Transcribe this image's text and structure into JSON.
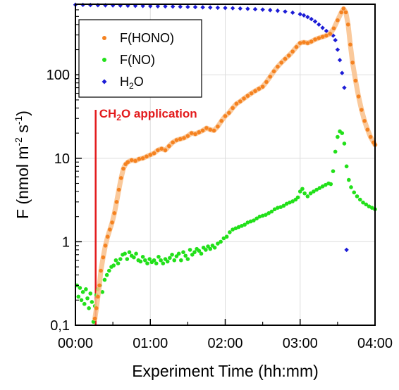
{
  "chart_data": {
    "type": "scatter",
    "title": "",
    "xlabel": "Experiment Time (hh:mm)",
    "ylabel_prefix": "F (nmol m",
    "ylabel_sup1": "-2",
    "ylabel_mid": " s",
    "ylabel_sup2": "-1",
    "ylabel_suffix": ")",
    "xlim_hours": [
      0,
      4
    ],
    "ylim": [
      0.1,
      700
    ],
    "yscale": "log",
    "grid": true,
    "legend_position": "top-left",
    "x_ticks": [
      {
        "value": 0,
        "label": "00:00"
      },
      {
        "value": 1,
        "label": "01:00"
      },
      {
        "value": 2,
        "label": "02:00"
      },
      {
        "value": 3,
        "label": "03:00"
      },
      {
        "value": 4,
        "label": "04:00"
      }
    ],
    "y_ticks": [
      {
        "value": 0.1,
        "label": "0,1"
      },
      {
        "value": 1,
        "label": "1"
      },
      {
        "value": 10,
        "label": "10"
      },
      {
        "value": 100,
        "label": "100"
      }
    ],
    "annotation": {
      "x": 0.27,
      "y_from": 0.1,
      "y_to": 38,
      "label_prefix": "CH",
      "label_sub": "2",
      "label_suffix": "O application",
      "color": "#e31a1c"
    },
    "series": [
      {
        "name": "F(HONO)",
        "name_sub": "",
        "color": "#f58220",
        "band_color": "#f9c08a",
        "marker": "circle",
        "points": [
          [
            0.26,
            0.12
          ],
          [
            0.28,
            0.16
          ],
          [
            0.3,
            0.22
          ],
          [
            0.32,
            0.3
          ],
          [
            0.34,
            0.45
          ],
          [
            0.37,
            0.65
          ],
          [
            0.4,
            0.9
          ],
          [
            0.43,
            1.15
          ],
          [
            0.46,
            1.4
          ],
          [
            0.49,
            1.7
          ],
          [
            0.52,
            2.2
          ],
          [
            0.55,
            3.0
          ],
          [
            0.58,
            4.2
          ],
          [
            0.61,
            5.8
          ],
          [
            0.64,
            7.5
          ],
          [
            0.67,
            8.5
          ],
          [
            0.7,
            9.0
          ],
          [
            0.75,
            9.5
          ],
          [
            0.8,
            9.3
          ],
          [
            0.85,
            9.8
          ],
          [
            0.9,
            10.0
          ],
          [
            0.95,
            10.5
          ],
          [
            1.0,
            11.0
          ],
          [
            1.05,
            11.5
          ],
          [
            1.1,
            12.5
          ],
          [
            1.15,
            13.0
          ],
          [
            1.2,
            12.5
          ],
          [
            1.25,
            14.0
          ],
          [
            1.3,
            15.5
          ],
          [
            1.35,
            16.5
          ],
          [
            1.4,
            17.0
          ],
          [
            1.45,
            17.5
          ],
          [
            1.5,
            18.5
          ],
          [
            1.55,
            20.0
          ],
          [
            1.6,
            19.5
          ],
          [
            1.65,
            20.5
          ],
          [
            1.7,
            21.5
          ],
          [
            1.75,
            23.0
          ],
          [
            1.8,
            22.0
          ],
          [
            1.85,
            21.5
          ],
          [
            1.9,
            24.0
          ],
          [
            1.95,
            28.0
          ],
          [
            2.0,
            32.0
          ],
          [
            2.05,
            35.0
          ],
          [
            2.1,
            40.0
          ],
          [
            2.15,
            45.0
          ],
          [
            2.2,
            48.0
          ],
          [
            2.25,
            52.0
          ],
          [
            2.3,
            56.0
          ],
          [
            2.35,
            60.0
          ],
          [
            2.4,
            64.0
          ],
          [
            2.45,
            68.0
          ],
          [
            2.5,
            72.0
          ],
          [
            2.55,
            82.0
          ],
          [
            2.6,
            95.0
          ],
          [
            2.65,
            110.0
          ],
          [
            2.7,
            125.0
          ],
          [
            2.75,
            140.0
          ],
          [
            2.8,
            155.0
          ],
          [
            2.85,
            170.0
          ],
          [
            2.9,
            190.0
          ],
          [
            2.95,
            215.0
          ],
          [
            3.0,
            240.0
          ],
          [
            3.05,
            245.0
          ],
          [
            3.1,
            240.0
          ],
          [
            3.15,
            250.0
          ],
          [
            3.2,
            265.0
          ],
          [
            3.25,
            275.0
          ],
          [
            3.3,
            285.0
          ],
          [
            3.35,
            295.0
          ],
          [
            3.4,
            310.0
          ],
          [
            3.45,
            360.0
          ],
          [
            3.5,
            450.0
          ],
          [
            3.55,
            560.0
          ],
          [
            3.58,
            620.0
          ],
          [
            3.61,
            560.0
          ],
          [
            3.64,
            400.0
          ],
          [
            3.67,
            230.0
          ],
          [
            3.7,
            140.0
          ],
          [
            3.74,
            85.0
          ],
          [
            3.78,
            55.0
          ],
          [
            3.82,
            38.0
          ],
          [
            3.86,
            28.0
          ],
          [
            3.9,
            22.0
          ],
          [
            3.94,
            18.0
          ],
          [
            3.98,
            15.5
          ],
          [
            4.0,
            14.5
          ]
        ]
      },
      {
        "name": "F(NO)",
        "name_sub": "",
        "color": "#22e01a",
        "marker": "circle",
        "points": [
          [
            0.02,
            0.3
          ],
          [
            0.04,
            0.22
          ],
          [
            0.06,
            0.28
          ],
          [
            0.08,
            0.2
          ],
          [
            0.1,
            0.25
          ],
          [
            0.12,
            0.18
          ],
          [
            0.14,
            0.27
          ],
          [
            0.16,
            0.21
          ],
          [
            0.18,
            0.16
          ],
          [
            0.2,
            0.24
          ],
          [
            0.22,
            0.19
          ],
          [
            0.24,
            0.11
          ],
          [
            0.26,
            0.17
          ],
          [
            0.28,
            0.23
          ],
          [
            0.3,
            0.27
          ],
          [
            0.33,
            0.3
          ],
          [
            0.36,
            0.25
          ],
          [
            0.39,
            0.35
          ],
          [
            0.42,
            0.4
          ],
          [
            0.45,
            0.45
          ],
          [
            0.48,
            0.5
          ],
          [
            0.51,
            0.52
          ],
          [
            0.54,
            0.6
          ],
          [
            0.57,
            0.55
          ],
          [
            0.6,
            0.62
          ],
          [
            0.63,
            0.7
          ],
          [
            0.66,
            0.72
          ],
          [
            0.69,
            0.62
          ],
          [
            0.72,
            0.75
          ],
          [
            0.75,
            0.68
          ],
          [
            0.78,
            0.65
          ],
          [
            0.81,
            0.72
          ],
          [
            0.84,
            0.6
          ],
          [
            0.87,
            0.58
          ],
          [
            0.9,
            0.66
          ],
          [
            0.93,
            0.6
          ],
          [
            0.96,
            0.55
          ],
          [
            0.99,
            0.62
          ],
          [
            1.02,
            0.57
          ],
          [
            1.05,
            0.6
          ],
          [
            1.08,
            0.55
          ],
          [
            1.11,
            0.66
          ],
          [
            1.14,
            0.6
          ],
          [
            1.17,
            0.55
          ],
          [
            1.2,
            0.62
          ],
          [
            1.23,
            0.58
          ],
          [
            1.26,
            0.64
          ],
          [
            1.29,
            0.7
          ],
          [
            1.32,
            0.6
          ],
          [
            1.35,
            0.67
          ],
          [
            1.38,
            0.72
          ],
          [
            1.41,
            0.6
          ],
          [
            1.44,
            0.75
          ],
          [
            1.47,
            0.68
          ],
          [
            1.5,
            0.62
          ],
          [
            1.53,
            0.8
          ],
          [
            1.56,
            0.7
          ],
          [
            1.59,
            0.75
          ],
          [
            1.62,
            0.82
          ],
          [
            1.65,
            0.78
          ],
          [
            1.68,
            0.72
          ],
          [
            1.71,
            0.85
          ],
          [
            1.74,
            0.8
          ],
          [
            1.77,
            0.88
          ],
          [
            1.8,
            0.82
          ],
          [
            1.83,
            0.9
          ],
          [
            1.86,
            0.85
          ],
          [
            1.9,
            0.95
          ],
          [
            1.94,
            1.0
          ],
          [
            1.98,
            1.1
          ],
          [
            2.02,
            1.15
          ],
          [
            2.06,
            1.3
          ],
          [
            2.1,
            1.4
          ],
          [
            2.14,
            1.45
          ],
          [
            2.18,
            1.5
          ],
          [
            2.22,
            1.55
          ],
          [
            2.26,
            1.6
          ],
          [
            2.3,
            1.7
          ],
          [
            2.34,
            1.75
          ],
          [
            2.38,
            1.8
          ],
          [
            2.42,
            1.9
          ],
          [
            2.46,
            2.0
          ],
          [
            2.5,
            2.05
          ],
          [
            2.54,
            2.1
          ],
          [
            2.58,
            2.2
          ],
          [
            2.62,
            2.3
          ],
          [
            2.66,
            2.45
          ],
          [
            2.7,
            2.55
          ],
          [
            2.74,
            2.6
          ],
          [
            2.78,
            2.7
          ],
          [
            2.82,
            2.85
          ],
          [
            2.86,
            2.95
          ],
          [
            2.9,
            3.05
          ],
          [
            2.94,
            3.2
          ],
          [
            2.97,
            3.4
          ],
          [
            3.0,
            4.0
          ],
          [
            3.03,
            4.3
          ],
          [
            3.06,
            3.8
          ],
          [
            3.1,
            3.5
          ],
          [
            3.14,
            3.8
          ],
          [
            3.18,
            4.0
          ],
          [
            3.22,
            4.2
          ],
          [
            3.26,
            4.4
          ],
          [
            3.3,
            4.6
          ],
          [
            3.34,
            4.8
          ],
          [
            3.38,
            5.0
          ],
          [
            3.41,
            4.9
          ],
          [
            3.44,
            7.0
          ],
          [
            3.47,
            12.0
          ],
          [
            3.5,
            18.0
          ],
          [
            3.53,
            21.0
          ],
          [
            3.56,
            20.0
          ],
          [
            3.59,
            15.0
          ],
          [
            3.62,
            8.0
          ],
          [
            3.65,
            5.5
          ],
          [
            3.68,
            4.5
          ],
          [
            3.72,
            3.9
          ],
          [
            3.76,
            3.5
          ],
          [
            3.8,
            3.2
          ],
          [
            3.84,
            2.95
          ],
          [
            3.88,
            2.8
          ],
          [
            3.92,
            2.65
          ],
          [
            3.96,
            2.55
          ],
          [
            4.0,
            2.45
          ]
        ]
      },
      {
        "name": "H",
        "name_sub": "2",
        "name_suffix": "O",
        "color": "#1c1cd6",
        "marker": "diamond",
        "points": [
          [
            0.0,
            690
          ],
          [
            0.1,
            688
          ],
          [
            0.2,
            685
          ],
          [
            0.3,
            682
          ],
          [
            0.4,
            680
          ],
          [
            0.5,
            678
          ],
          [
            0.6,
            675
          ],
          [
            0.7,
            672
          ],
          [
            0.8,
            670
          ],
          [
            0.9,
            668
          ],
          [
            1.0,
            665
          ],
          [
            1.1,
            662
          ],
          [
            1.2,
            660
          ],
          [
            1.3,
            657
          ],
          [
            1.4,
            654
          ],
          [
            1.5,
            650
          ],
          [
            1.6,
            647
          ],
          [
            1.7,
            643
          ],
          [
            1.8,
            640
          ],
          [
            1.9,
            636
          ],
          [
            2.0,
            632
          ],
          [
            2.1,
            627
          ],
          [
            2.2,
            622
          ],
          [
            2.3,
            617
          ],
          [
            2.4,
            610
          ],
          [
            2.5,
            603
          ],
          [
            2.6,
            595
          ],
          [
            2.7,
            585
          ],
          [
            2.8,
            572
          ],
          [
            2.9,
            555
          ],
          [
            3.0,
            532
          ],
          [
            3.05,
            515
          ],
          [
            3.1,
            492
          ],
          [
            3.15,
            465
          ],
          [
            3.2,
            435
          ],
          [
            3.25,
            400
          ],
          [
            3.3,
            365
          ],
          [
            3.35,
            335
          ],
          [
            3.4,
            310
          ],
          [
            3.44,
            295
          ],
          [
            3.47,
            260
          ],
          [
            3.5,
            200
          ],
          [
            3.53,
            150
          ],
          [
            3.56,
            105
          ],
          [
            3.59,
            70
          ],
          [
            3.62,
            0.8
          ]
        ]
      }
    ]
  }
}
